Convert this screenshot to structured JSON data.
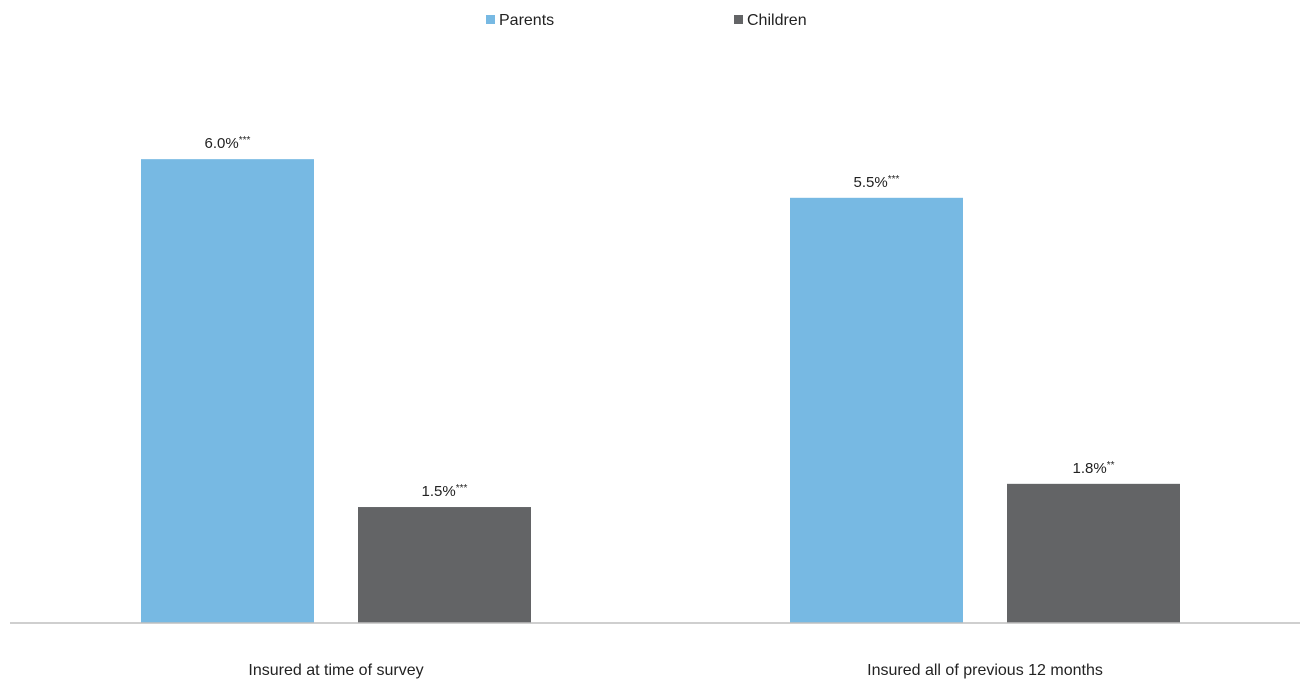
{
  "chart_data": {
    "type": "bar",
    "categories": [
      "Insured at time of survey",
      "Insured all of previous 12 months"
    ],
    "series": [
      {
        "name": "Parents",
        "color": "#77b9e3",
        "values": [
          6.0,
          5.5
        ],
        "labels": [
          "6.0%",
          "5.5%"
        ],
        "significance": [
          "***",
          "***"
        ]
      },
      {
        "name": "Children",
        "color": "#636466",
        "values": [
          1.5,
          1.8
        ],
        "labels": [
          "1.5%",
          "1.8%"
        ],
        "significance": [
          "***",
          "**"
        ]
      }
    ],
    "ylim": [
      0,
      7.8
    ],
    "grid": false,
    "legend": "top-center"
  }
}
